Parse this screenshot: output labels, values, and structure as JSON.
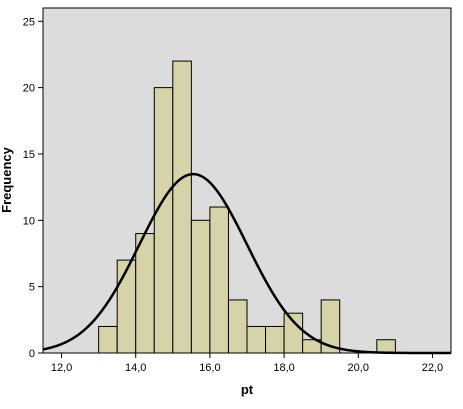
{
  "chart_data": {
    "type": "bar",
    "subtype": "histogram",
    "xlabel": "pt",
    "ylabel": "Frequency",
    "xlim": [
      11.5,
      22.5
    ],
    "ylim": [
      0,
      26
    ],
    "x_ticks": [
      {
        "value": 12,
        "label": "12,0"
      },
      {
        "value": 14,
        "label": "14,0"
      },
      {
        "value": 16,
        "label": "16,0"
      },
      {
        "value": 18,
        "label": "18,0"
      },
      {
        "value": 20,
        "label": "20,0"
      },
      {
        "value": 22,
        "label": "22,0"
      }
    ],
    "y_ticks": [
      {
        "value": 0,
        "label": "0"
      },
      {
        "value": 5,
        "label": "5"
      },
      {
        "value": 10,
        "label": "10"
      },
      {
        "value": 15,
        "label": "15"
      },
      {
        "value": 20,
        "label": "20"
      },
      {
        "value": 25,
        "label": "25"
      }
    ],
    "bin_width": 0.5,
    "bins": [
      {
        "start": 13.0,
        "count": 2
      },
      {
        "start": 13.5,
        "count": 7
      },
      {
        "start": 14.0,
        "count": 9
      },
      {
        "start": 14.5,
        "count": 20
      },
      {
        "start": 15.0,
        "count": 22
      },
      {
        "start": 15.5,
        "count": 10
      },
      {
        "start": 16.0,
        "count": 11
      },
      {
        "start": 16.5,
        "count": 4
      },
      {
        "start": 17.0,
        "count": 2
      },
      {
        "start": 17.5,
        "count": 2
      },
      {
        "start": 18.0,
        "count": 3
      },
      {
        "start": 18.5,
        "count": 1
      },
      {
        "start": 19.0,
        "count": 4
      },
      {
        "start": 19.5,
        "count": 0
      },
      {
        "start": 20.0,
        "count": 0
      },
      {
        "start": 20.5,
        "count": 1
      }
    ],
    "normal_curve": {
      "mean": 15.55,
      "sd": 1.45,
      "n": 98
    },
    "colors": {
      "plot_background": "#dcdcdc",
      "bar_fill": "#d7d3a8",
      "bar_stroke": "#000000",
      "curve": "#000000"
    },
    "grid": false
  }
}
